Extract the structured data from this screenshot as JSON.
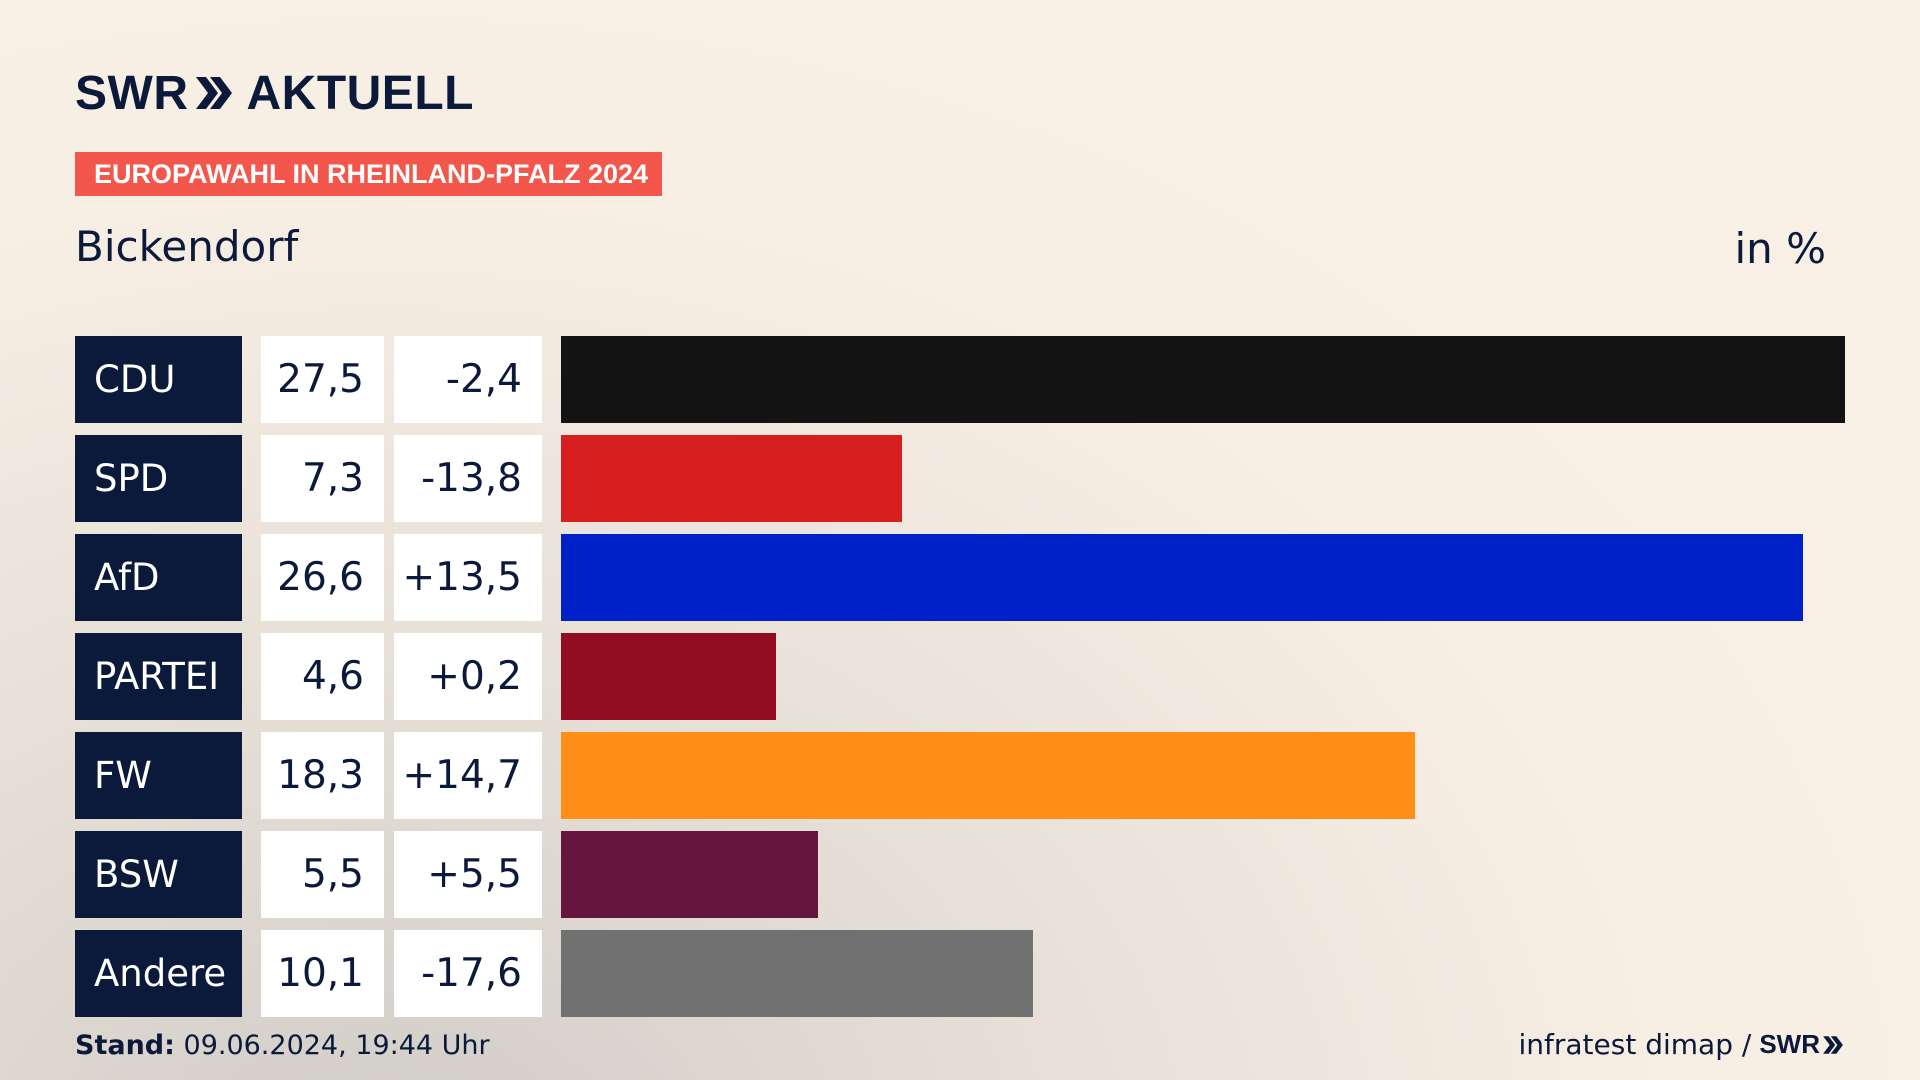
{
  "logo": {
    "brand": "SWR",
    "product": "AKTUELL"
  },
  "tag": "EUROPAWAHL IN RHEINLAND-PFALZ 2024",
  "place": "Bickendorf",
  "unit": "in %",
  "chart_data": {
    "type": "bar",
    "orientation": "horizontal",
    "title": "Bickendorf",
    "ylabel": "in %",
    "categories": [
      "CDU",
      "SPD",
      "AfD",
      "PARTEI",
      "FW",
      "BSW",
      "Andere"
    ],
    "values": [
      27.5,
      7.3,
      26.6,
      4.6,
      18.3,
      5.5,
      10.1
    ],
    "value_labels": [
      "27,5",
      "7,3",
      "26,6",
      "4,6",
      "18,3",
      "5,5",
      "10,1"
    ],
    "changes": [
      -2.4,
      -13.8,
      13.5,
      0.2,
      14.7,
      5.5,
      -17.6
    ],
    "change_labels": [
      "-2,4",
      "-13,8",
      "+13,5",
      "+0,2",
      "+14,7",
      "+5,5",
      "-17,6"
    ],
    "colors": [
      "#131313",
      "#d71f1f",
      "#0021c8",
      "#920d21",
      "#ff8e19",
      "#65153e",
      "#717171"
    ],
    "xlim": [
      0,
      27.5
    ]
  },
  "footer": {
    "stand_label": "Stand:",
    "stand_value": "09.06.2024, 19:44 Uhr",
    "source": "infratest dimap /",
    "source_brand": "SWR"
  }
}
